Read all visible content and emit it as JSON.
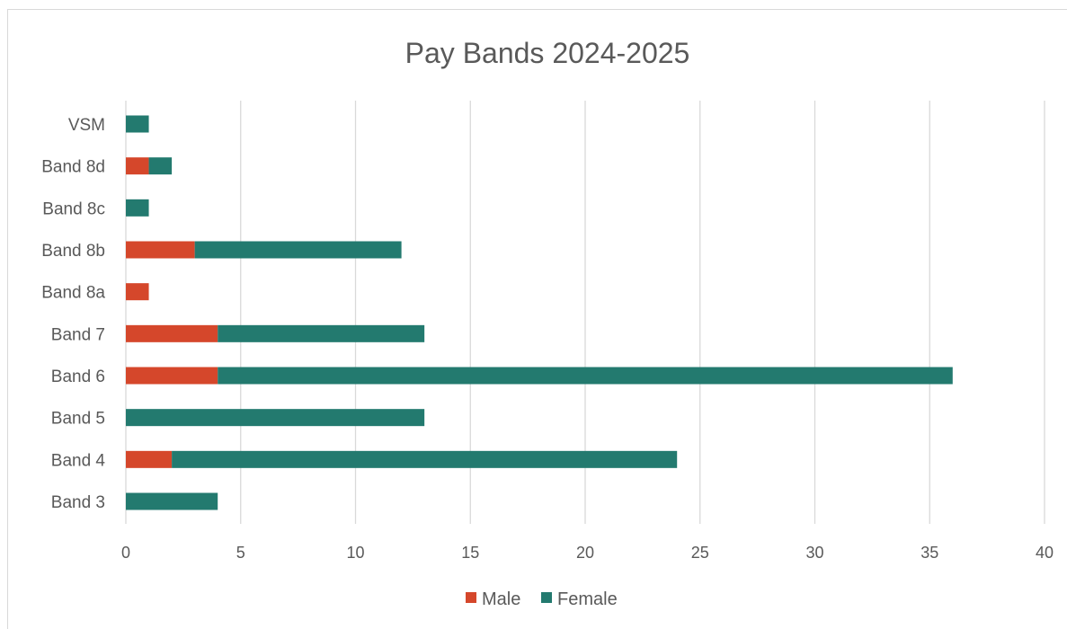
{
  "chart_data": {
    "type": "bar",
    "orientation": "horizontal",
    "stacked": true,
    "title": "Pay Bands 2024-2025",
    "categories": [
      "Band 3",
      "Band 4",
      "Band 5",
      "Band 6",
      "Band 7",
      "Band 8a",
      "Band 8b",
      "Band 8c",
      "Band 8d",
      "VSM"
    ],
    "series": [
      {
        "name": "Male",
        "color": "#d5472b",
        "values": [
          0,
          2,
          0,
          4,
          4,
          1,
          3,
          0,
          1,
          0
        ]
      },
      {
        "name": "Female",
        "color": "#237a6f",
        "values": [
          4,
          22,
          13,
          32,
          9,
          0,
          9,
          1,
          1,
          1
        ]
      }
    ],
    "xlim": [
      0,
      40
    ],
    "xticks": [
      0,
      5,
      10,
      15,
      20,
      25,
      30,
      35,
      40
    ],
    "grid": "vertical",
    "legend_position": "bottom"
  }
}
